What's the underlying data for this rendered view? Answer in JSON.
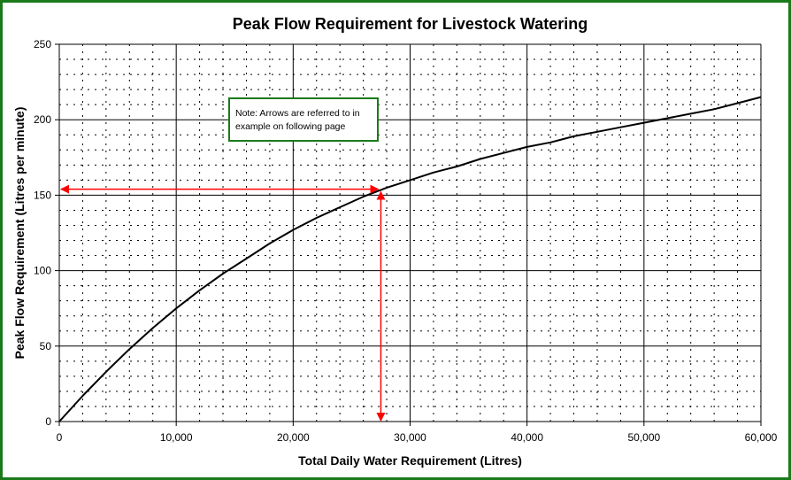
{
  "chart_data": {
    "type": "line",
    "title": "Peak Flow Requirement for Livestock Watering",
    "xlabel": "Total Daily Water Requirement (Litres)",
    "ylabel": "Peak Flow Requirement (Litres per minute)",
    "xlim": [
      0,
      60000
    ],
    "ylim": [
      0,
      250
    ],
    "xticks": [
      0,
      10000,
      20000,
      30000,
      40000,
      50000,
      60000
    ],
    "xtick_labels": [
      "0",
      "10,000",
      "20,000",
      "30,000",
      "40,000",
      "50,000",
      "60,000"
    ],
    "yticks": [
      0,
      50,
      100,
      150,
      200,
      250
    ],
    "ytick_labels": [
      "0",
      "50",
      "100",
      "150",
      "200",
      "250"
    ],
    "grid": true,
    "series": [
      {
        "x": [
          0,
          2000,
          4000,
          6000,
          8000,
          10000,
          12000,
          14000,
          16000,
          18000,
          20000,
          22000,
          24000,
          26000,
          28000,
          30000,
          32000,
          34000,
          36000,
          38000,
          40000,
          42000,
          44000,
          46000,
          48000,
          50000,
          52000,
          54000,
          56000,
          58000,
          60000
        ],
        "y": [
          0,
          17,
          33,
          48,
          62,
          75,
          87,
          98,
          108,
          118,
          127,
          135,
          142,
          149,
          155,
          160,
          165,
          169,
          174,
          178,
          182,
          185,
          189,
          192,
          195,
          198,
          201,
          204,
          207,
          211,
          215
        ]
      }
    ],
    "annotations": [
      {
        "text": "Note: Arrows are referred to in example on following page"
      }
    ],
    "reference_arrows": {
      "x": 27500,
      "y": 154,
      "color": "#ff0000"
    }
  },
  "colors": {
    "border": "#1a7a1a",
    "curve": "#000000",
    "arrow": "#ff0000"
  }
}
